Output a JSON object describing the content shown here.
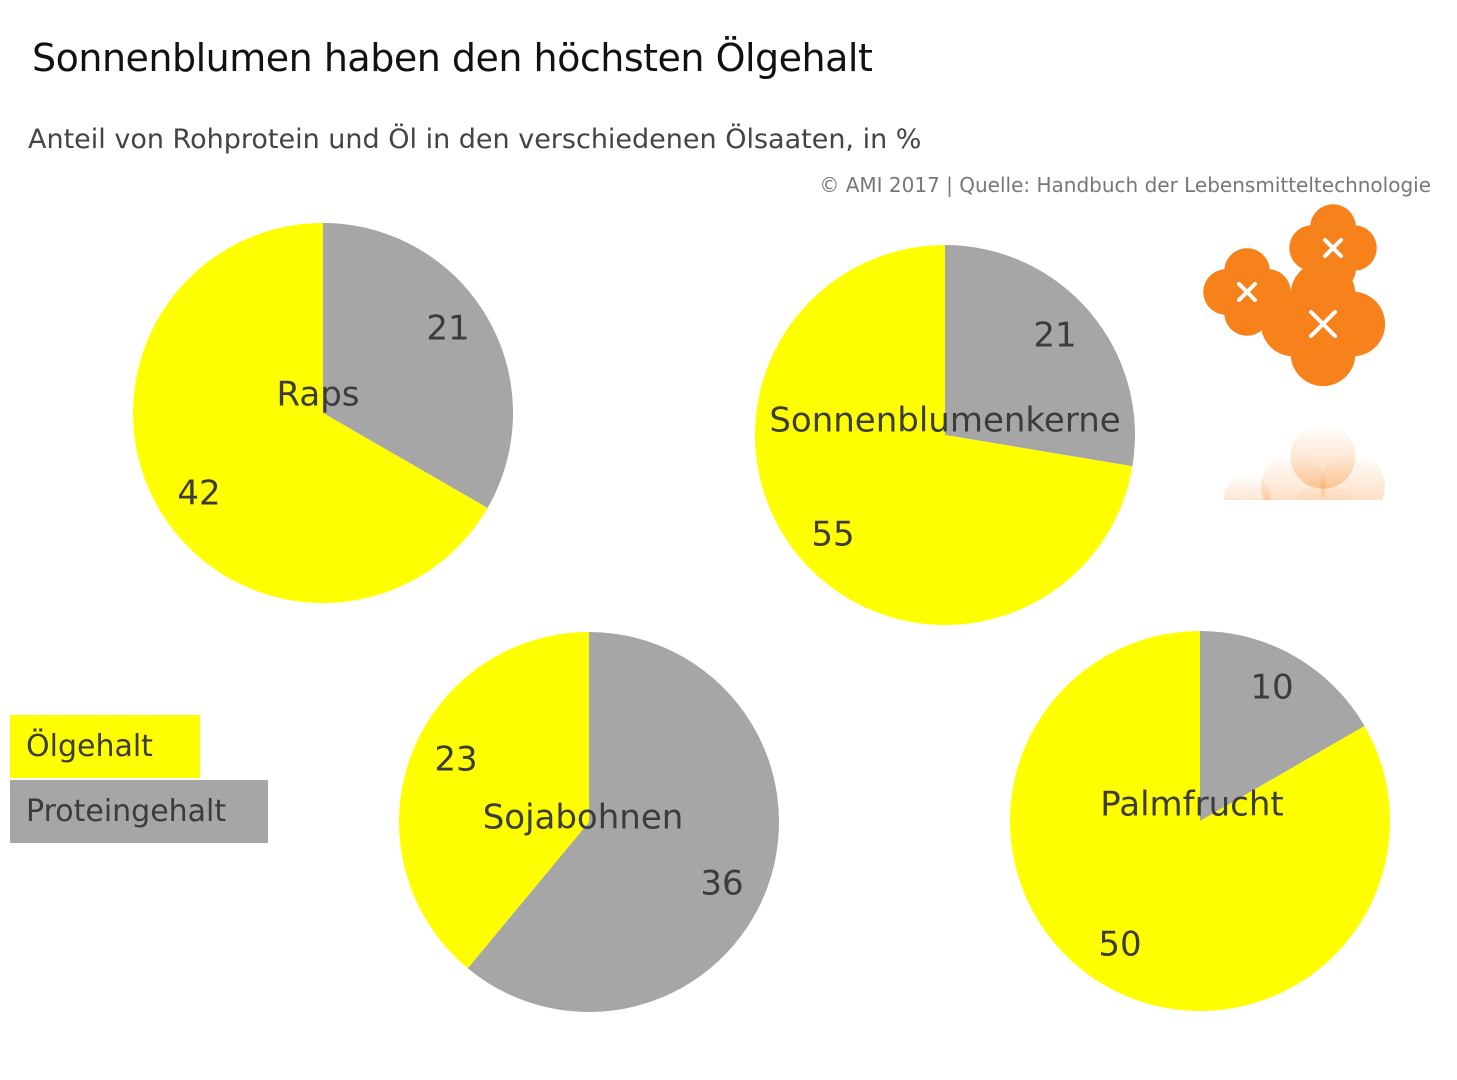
{
  "title": "Sonnenblumen haben den höchsten Ölgehalt",
  "subtitle": "Anteil von Rohprotein und Öl in den verschiedenen Ölsaaten, in %",
  "source": "© AMI 2017 | Quelle: Handbuch der Lebensmitteltechnologie",
  "colors": {
    "oil": "#ffff00",
    "protein": "#a6a6a6",
    "text": "#3c3c3c",
    "flower": "#f7821b"
  },
  "legend": [
    {
      "key": "oil",
      "label": "Ölgehalt",
      "color": "#ffff00"
    },
    {
      "key": "protein",
      "label": "Proteingehalt",
      "color": "#a6a6a6"
    }
  ],
  "chart_data": [
    {
      "type": "pie",
      "title": "Raps",
      "slices": [
        {
          "series": "Proteingehalt",
          "value": 21,
          "label": "21"
        },
        {
          "series": "Ölgehalt",
          "value": 42,
          "label": "42"
        }
      ]
    },
    {
      "type": "pie",
      "title": "Sonnenblumenkerne",
      "slices": [
        {
          "series": "Proteingehalt",
          "value": 21,
          "label": "21"
        },
        {
          "series": "Ölgehalt",
          "value": 55,
          "label": "55"
        }
      ]
    },
    {
      "type": "pie",
      "title": "Sojabohnen",
      "slices": [
        {
          "series": "Proteingehalt",
          "value": 36,
          "label": "36"
        },
        {
          "series": "Ölgehalt",
          "value": 23,
          "label": "23"
        }
      ]
    },
    {
      "type": "pie",
      "title": "Palmfrucht",
      "slices": [
        {
          "series": "Proteingehalt",
          "value": 10,
          "label": "10"
        },
        {
          "series": "Ölgehalt",
          "value": 50,
          "label": "50"
        }
      ]
    }
  ]
}
